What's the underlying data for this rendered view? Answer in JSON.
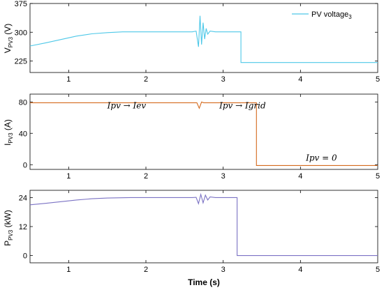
{
  "chart_data": [
    {
      "type": "line",
      "ylabel": "V",
      "ylabel_sub": "PV3",
      "ylabel_unit": " (V)",
      "xlim": [
        0.5,
        5
      ],
      "ylim": [
        195,
        375
      ],
      "yticks": [
        225,
        300,
        375
      ],
      "xticks": [
        1,
        2,
        3,
        4,
        5
      ],
      "grid": false,
      "legend": {
        "position": "top-right",
        "label": "PV voltage",
        "label_sub": "3"
      },
      "series": [
        {
          "name": "PV voltage3",
          "color": "#4dc8e8",
          "points": [
            [
              0.5,
              264
            ],
            [
              0.7,
              272
            ],
            [
              0.9,
              281
            ],
            [
              1.1,
              290
            ],
            [
              1.3,
              296
            ],
            [
              1.5,
              299
            ],
            [
              1.7,
              301
            ],
            [
              2.0,
              301
            ],
            [
              2.3,
              301
            ],
            [
              2.6,
              301
            ],
            [
              2.65,
              303
            ],
            [
              2.68,
              262
            ],
            [
              2.7,
              343
            ],
            [
              2.72,
              268
            ],
            [
              2.74,
              325
            ],
            [
              2.76,
              282
            ],
            [
              2.78,
              310
            ],
            [
              2.8,
              295
            ],
            [
              2.83,
              303
            ],
            [
              2.9,
              301
            ],
            [
              3.1,
              301
            ],
            [
              3.23,
              301
            ],
            [
              3.23,
              221
            ],
            [
              5,
              221
            ]
          ]
        }
      ]
    },
    {
      "type": "line",
      "ylabel": "I",
      "ylabel_sub": "PV3",
      "ylabel_unit": " (A)",
      "xlim": [
        0.5,
        5
      ],
      "ylim": [
        -6,
        90
      ],
      "yticks": [
        0,
        40,
        80
      ],
      "xticks": [
        1,
        2,
        3,
        4,
        5
      ],
      "grid": false,
      "annotations": [
        {
          "text": "Ipv → Iev",
          "x": 1.5,
          "y": 72
        },
        {
          "text": "Ipv → Igrid",
          "x": 2.95,
          "y": 72
        },
        {
          "text": "Ipv = 0",
          "x": 4.07,
          "y": 5
        }
      ],
      "series": [
        {
          "name": "",
          "color": "#d4691c",
          "points": [
            [
              0.5,
              79
            ],
            [
              2.6,
              79
            ],
            [
              2.66,
              79
            ],
            [
              2.69,
              72
            ],
            [
              2.72,
              80
            ],
            [
              2.75,
              79
            ],
            [
              3.43,
              79
            ],
            [
              3.43,
              -1
            ],
            [
              5,
              -1
            ]
          ]
        }
      ]
    },
    {
      "type": "line",
      "ylabel": "P",
      "ylabel_sub": "PV3",
      "ylabel_unit": " (kW)",
      "xlim": [
        0.5,
        5
      ],
      "ylim": [
        -3,
        27
      ],
      "yticks": [
        0,
        12,
        24
      ],
      "xticks": [
        1,
        2,
        3,
        4,
        5
      ],
      "xlabel": "Time (s)",
      "grid": false,
      "series": [
        {
          "name": "",
          "color": "#7b72c4",
          "points": [
            [
              0.5,
              21
            ],
            [
              0.7,
              21.6
            ],
            [
              0.9,
              22.3
            ],
            [
              1.1,
              23.0
            ],
            [
              1.3,
              23.5
            ],
            [
              1.5,
              23.8
            ],
            [
              1.8,
              24.0
            ],
            [
              2.6,
              24.0
            ],
            [
              2.65,
              24.1
            ],
            [
              2.68,
              21.5
            ],
            [
              2.71,
              25.3
            ],
            [
              2.74,
              21.8
            ],
            [
              2.77,
              25.0
            ],
            [
              2.8,
              23.0
            ],
            [
              2.83,
              24.3
            ],
            [
              2.9,
              24.0
            ],
            [
              3.18,
              24.0
            ],
            [
              3.18,
              0
            ],
            [
              5,
              0
            ]
          ]
        }
      ]
    }
  ]
}
